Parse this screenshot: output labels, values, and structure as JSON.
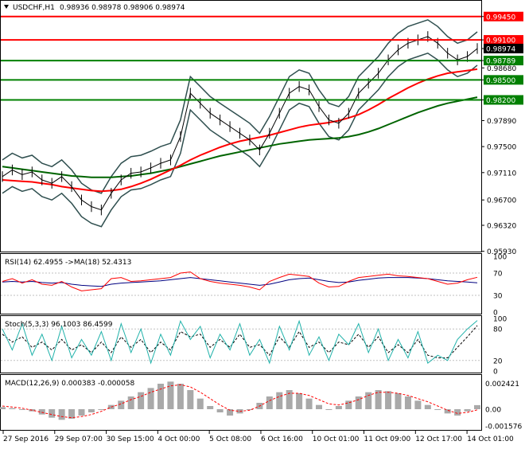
{
  "header": {
    "symbol_label": "USDCHF,H1",
    "ohlc_label": "0.98936 0.98978 0.98906 0.98974"
  },
  "colors": {
    "red_level": "#ff0000",
    "green_level": "#008000",
    "ma_red": "#ff0000",
    "ma_green": "#006400",
    "bands": "#2f4f4f",
    "rsi_line": "#ff0000",
    "rsi_ma": "#000080",
    "stoch_main": "#20b2aa",
    "stoch_signal": "#000000",
    "macd_hist": "#a9a9a9",
    "macd_signal": "#ff0000",
    "price_tag_bg": "#000000"
  },
  "chart_data": [
    {
      "type": "line",
      "name": "price",
      "title": "USDCHF,H1",
      "ohlc": {
        "open": 0.98936,
        "high": 0.98978,
        "low": 0.98906,
        "close": 0.98974
      },
      "ylim": [
        0.9595,
        0.9965
      ],
      "y_ticks": [
        0.9945,
        0.991,
        0.9897,
        0.9879,
        0.9868,
        0.985,
        0.982,
        0.9789,
        0.975,
        0.9711,
        0.967,
        0.9632,
        0.9593
      ],
      "y_tick_labels": [
        "0.99450",
        "0.99100",
        "0.98974",
        "0.98789",
        "0.98680",
        "0.98500",
        "0.98200",
        "0.97890",
        "0.97500",
        "0.97110",
        "0.96700",
        "0.96320",
        "0.95930"
      ],
      "levels": [
        {
          "value": 0.9945,
          "label": "0.99450",
          "color": "#ff0000"
        },
        {
          "value": 0.991,
          "label": "0.99100",
          "color": "#ff0000"
        },
        {
          "value": 0.98789,
          "label": "0.98789",
          "color": "#008000"
        },
        {
          "value": 0.985,
          "label": "0.98500",
          "color": "#008000"
        },
        {
          "value": 0.982,
          "label": "0.98200",
          "color": "#008000"
        }
      ],
      "current_price": {
        "value": 0.98974,
        "label": "0.98974"
      },
      "x_labels": [
        "27 Sep 2016",
        "29 Sep 07:00",
        "30 Sep 15:00",
        "4 Oct 00:00",
        "5 Oct 08:00",
        "6 Oct 16:00",
        "10 Oct 01:00",
        "11 Oct 09:00",
        "12 Oct 17:00",
        "14 Oct 01:00"
      ],
      "close_series": [
        0.9705,
        0.9715,
        0.9708,
        0.9712,
        0.97,
        0.9695,
        0.9705,
        0.969,
        0.967,
        0.966,
        0.9655,
        0.968,
        0.97,
        0.971,
        0.9712,
        0.9718,
        0.9725,
        0.973,
        0.9765,
        0.983,
        0.9815,
        0.98,
        0.979,
        0.978,
        0.977,
        0.976,
        0.9745,
        0.977,
        0.98,
        0.983,
        0.984,
        0.9835,
        0.981,
        0.979,
        0.9785,
        0.98,
        0.983,
        0.9845,
        0.986,
        0.988,
        0.9895,
        0.9905,
        0.991,
        0.9915,
        0.9905,
        0.989,
        0.988,
        0.9885,
        0.9897
      ],
      "ma_red": [
        0.97,
        0.9699,
        0.9698,
        0.9697,
        0.9695,
        0.9693,
        0.969,
        0.9688,
        0.9686,
        0.9684,
        0.9683,
        0.9684,
        0.9686,
        0.969,
        0.9695,
        0.9701,
        0.9708,
        0.9715,
        0.9722,
        0.973,
        0.9737,
        0.9743,
        0.9749,
        0.9754,
        0.9758,
        0.9761,
        0.9764,
        0.9767,
        0.9771,
        0.9775,
        0.9779,
        0.9782,
        0.9784,
        0.9786,
        0.9789,
        0.9793,
        0.9798,
        0.9805,
        0.9813,
        0.9822,
        0.983,
        0.9838,
        0.9845,
        0.9851,
        0.9856,
        0.986,
        0.9862,
        0.9864,
        0.9866
      ],
      "ma_green": [
        0.972,
        0.9718,
        0.9716,
        0.9714,
        0.9712,
        0.971,
        0.9708,
        0.9706,
        0.9705,
        0.9704,
        0.9704,
        0.9704,
        0.9705,
        0.9706,
        0.9708,
        0.971,
        0.9713,
        0.9716,
        0.972,
        0.9724,
        0.9728,
        0.9732,
        0.9736,
        0.9739,
        0.9742,
        0.9745,
        0.9748,
        0.9751,
        0.9754,
        0.9756,
        0.9758,
        0.976,
        0.9761,
        0.9762,
        0.9763,
        0.9765,
        0.9768,
        0.9772,
        0.9777,
        0.9783,
        0.9789,
        0.9795,
        0.9801,
        0.9806,
        0.9811,
        0.9815,
        0.9818,
        0.9821,
        0.9824
      ]
    },
    {
      "type": "line",
      "name": "rsi",
      "title": "RSI(14) 62.4955 ->MA(18) 52.4313",
      "ylim": [
        0,
        100
      ],
      "y_ticks": [
        100,
        70,
        30,
        0
      ],
      "values": [
        55,
        60,
        52,
        58,
        50,
        48,
        55,
        45,
        38,
        40,
        42,
        60,
        62,
        55,
        56,
        58,
        60,
        62,
        70,
        72,
        60,
        55,
        52,
        50,
        48,
        45,
        40,
        55,
        62,
        68,
        66,
        64,
        52,
        45,
        46,
        55,
        62,
        64,
        66,
        68,
        65,
        64,
        62,
        60,
        55,
        50,
        52,
        58,
        62.5
      ],
      "ma": [
        54,
        55,
        54,
        55,
        53,
        52,
        53,
        50,
        48,
        47,
        46,
        50,
        52,
        53,
        54,
        55,
        56,
        58,
        60,
        62,
        60,
        58,
        56,
        54,
        52,
        50,
        48,
        50,
        54,
        58,
        60,
        61,
        58,
        55,
        53,
        54,
        57,
        59,
        61,
        62,
        62,
        62,
        61,
        60,
        58,
        56,
        55,
        54,
        52.4
      ]
    },
    {
      "type": "line",
      "name": "stochastic",
      "title": "Stoch(5,3,3) 96.1003 86.4599",
      "ylim": [
        0,
        100
      ],
      "y_ticks": [
        100,
        80,
        20,
        0
      ],
      "values": [
        80,
        40,
        90,
        30,
        70,
        20,
        85,
        25,
        60,
        30,
        75,
        20,
        90,
        35,
        80,
        15,
        70,
        30,
        95,
        60,
        85,
        25,
        70,
        40,
        90,
        30,
        60,
        15,
        85,
        40,
        95,
        30,
        65,
        20,
        70,
        50,
        90,
        35,
        80,
        20,
        60,
        25,
        75,
        15,
        30,
        20,
        60,
        80,
        96.1
      ],
      "signal": [
        70,
        55,
        65,
        45,
        55,
        40,
        60,
        40,
        50,
        35,
        55,
        35,
        65,
        45,
        60,
        35,
        55,
        40,
        75,
        65,
        70,
        45,
        60,
        45,
        70,
        45,
        50,
        30,
        65,
        45,
        75,
        45,
        55,
        35,
        55,
        50,
        70,
        45,
        65,
        35,
        50,
        35,
        60,
        30,
        25,
        25,
        45,
        65,
        86.5
      ]
    },
    {
      "type": "bar",
      "name": "macd",
      "title": "MACD(12,26,9) 0.000383 -0.000058",
      "ylim": [
        -0.0018,
        0.003
      ],
      "y_ticks": [
        0.002421,
        0.0,
        -0.001576
      ],
      "y_tick_labels": [
        "0.002421",
        "0.00",
        "-0.001576"
      ],
      "values": [
        0.0002,
        0.0001,
        0.0,
        -0.0002,
        -0.0005,
        -0.0008,
        -0.001,
        -0.0009,
        -0.0006,
        -0.0003,
        0.0,
        0.0004,
        0.0008,
        0.0012,
        0.0016,
        0.002,
        0.0024,
        0.0026,
        0.0024,
        0.0018,
        0.001,
        0.0003,
        -0.0003,
        -0.0006,
        -0.0004,
        0.0,
        0.0006,
        0.0012,
        0.0016,
        0.0018,
        0.0015,
        0.001,
        0.0004,
        0.0,
        0.0003,
        0.0008,
        0.0012,
        0.0016,
        0.0018,
        0.0017,
        0.0015,
        0.0012,
        0.0008,
        0.0004,
        0.0,
        -0.0004,
        -0.0006,
        -0.0002,
        0.000383
      ],
      "signal": [
        0.0003,
        0.0002,
        0.0001,
        -0.0001,
        -0.0003,
        -0.0005,
        -0.0007,
        -0.0008,
        -0.0007,
        -0.0005,
        -0.0002,
        0.0002,
        0.0005,
        0.0009,
        0.0012,
        0.0016,
        0.0019,
        0.0022,
        0.0023,
        0.0021,
        0.0016,
        0.001,
        0.0004,
        -0.0001,
        -0.0002,
        -0.0001,
        0.0003,
        0.0008,
        0.0012,
        0.0015,
        0.0015,
        0.0013,
        0.0009,
        0.0005,
        0.0004,
        0.0006,
        0.0009,
        0.0013,
        0.0016,
        0.0016,
        0.0015,
        0.0013,
        0.001,
        0.0007,
        0.0003,
        -0.0001,
        -0.0004,
        -0.0003,
        -5.8e-05
      ]
    }
  ]
}
